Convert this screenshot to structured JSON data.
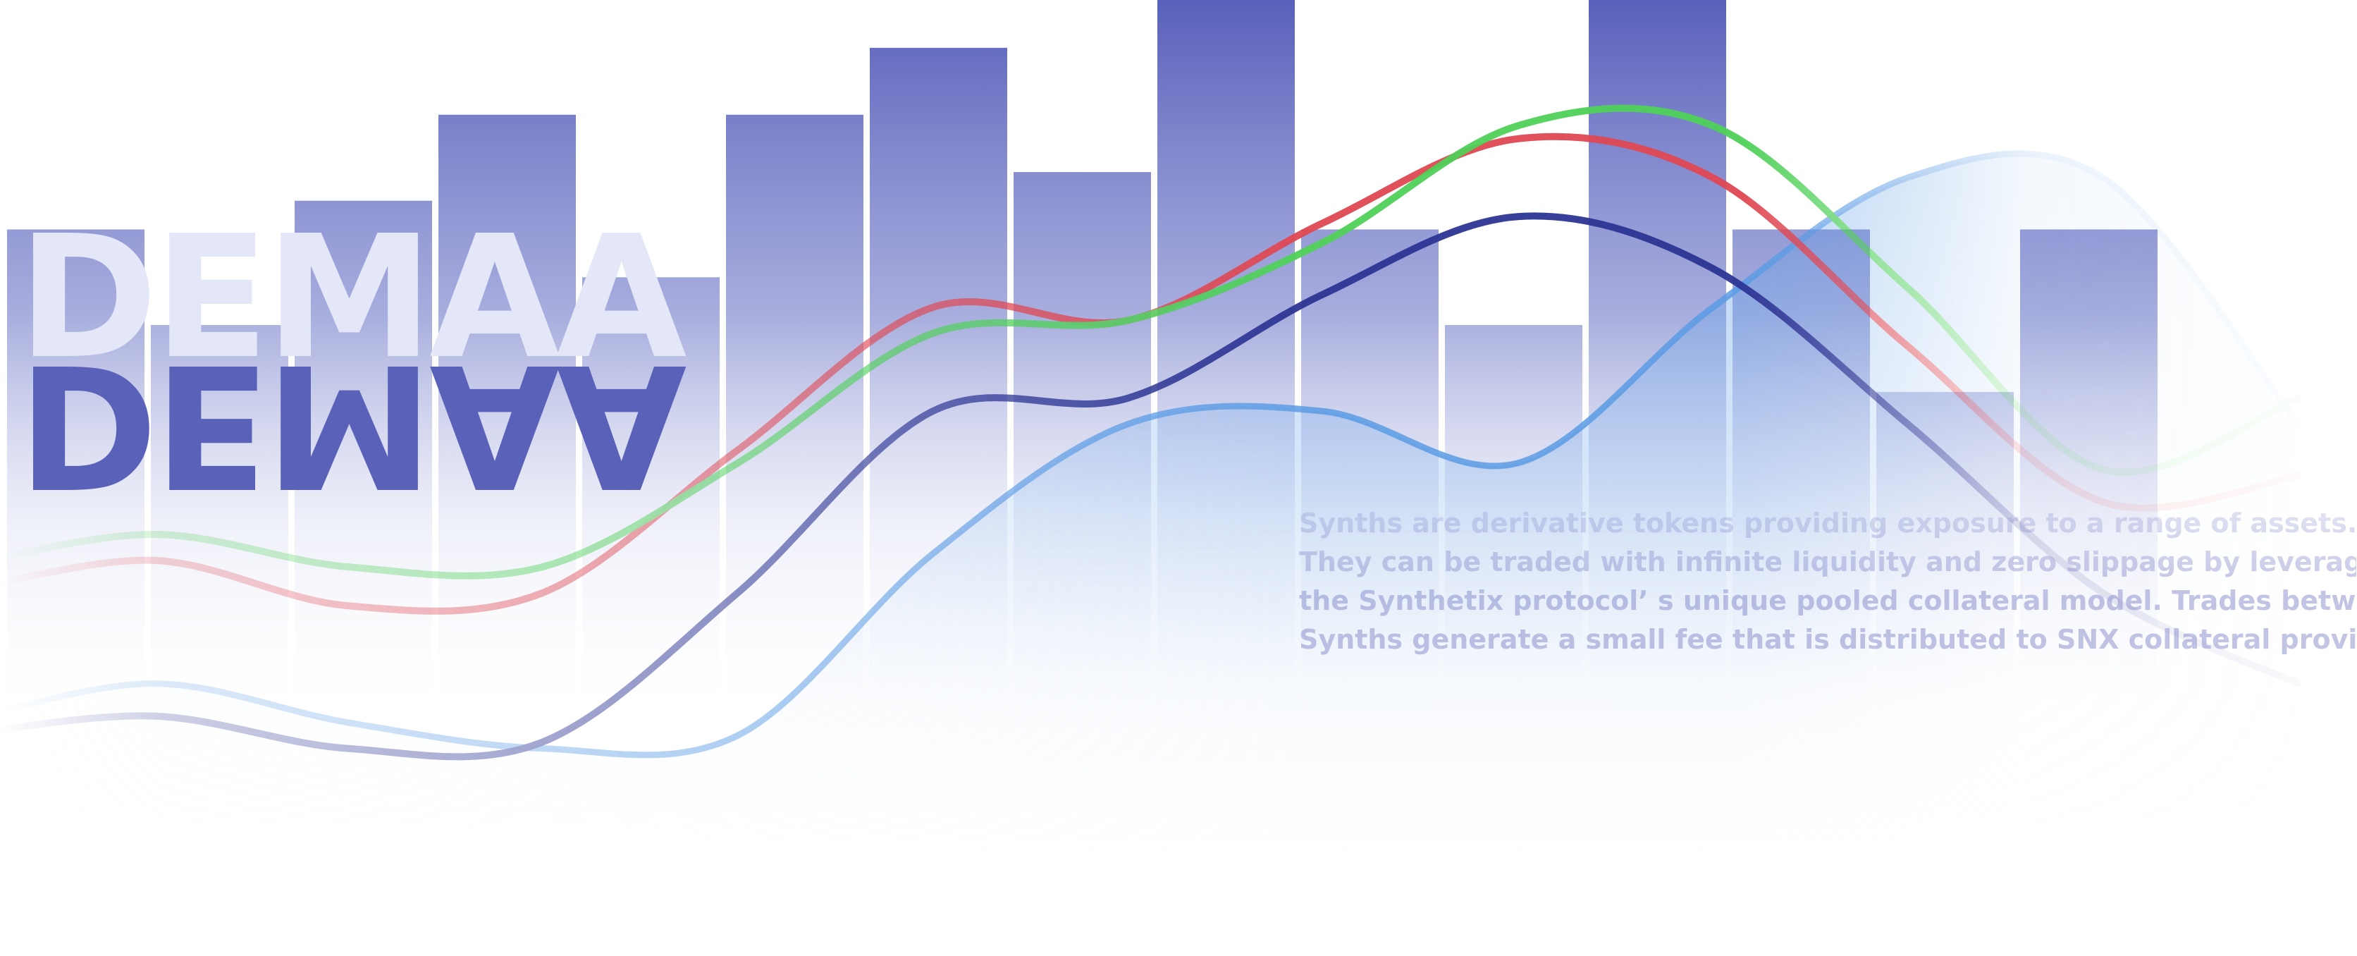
{
  "logo": {
    "text": "DEMAA",
    "color": "#e3e7f7",
    "reflection_color": "#5961b9"
  },
  "description": {
    "lines": [
      "Synths are derivative tokens providing exposure to a range of assets.",
      "They can be traded with infinite liquidity and zero slippage by leveraging",
      "the Synthetix protocol’ s unique pooled collateral model. Trades between",
      "Synths generate a small fee that is distributed to SNX collateral providers."
    ]
  },
  "chart_data": {
    "type": "bar",
    "bar_color": "#5960bb",
    "values": [
      0.76,
      0.66,
      0.79,
      0.88,
      0.71,
      0.88,
      0.95,
      0.82,
      1.0,
      0.76,
      0.66,
      1.0,
      0.76,
      0.59,
      0.76
    ],
    "series": [
      {
        "type": "area",
        "color": "#5b9be4",
        "values": [
          0.06,
          0.12,
          0.06,
          0.02,
          0.04,
          0.32,
          0.52,
          0.54,
          0.46,
          0.7,
          0.9,
          0.9,
          0.52
        ]
      },
      {
        "type": "line",
        "color": "#2c3593",
        "values": [
          0.04,
          0.07,
          0.02,
          0.03,
          0.26,
          0.54,
          0.56,
          0.72,
          0.84,
          0.76,
          0.52,
          0.26,
          0.12
        ]
      },
      {
        "type": "line",
        "color": "#df4852",
        "values": [
          0.26,
          0.31,
          0.24,
          0.26,
          0.48,
          0.7,
          0.68,
          0.83,
          0.96,
          0.9,
          0.64,
          0.4,
          0.44
        ]
      },
      {
        "type": "line",
        "color": "#4fd159",
        "values": [
          0.3,
          0.35,
          0.3,
          0.3,
          0.46,
          0.66,
          0.68,
          0.8,
          0.98,
          0.98,
          0.73,
          0.45,
          0.56
        ]
      }
    ]
  }
}
